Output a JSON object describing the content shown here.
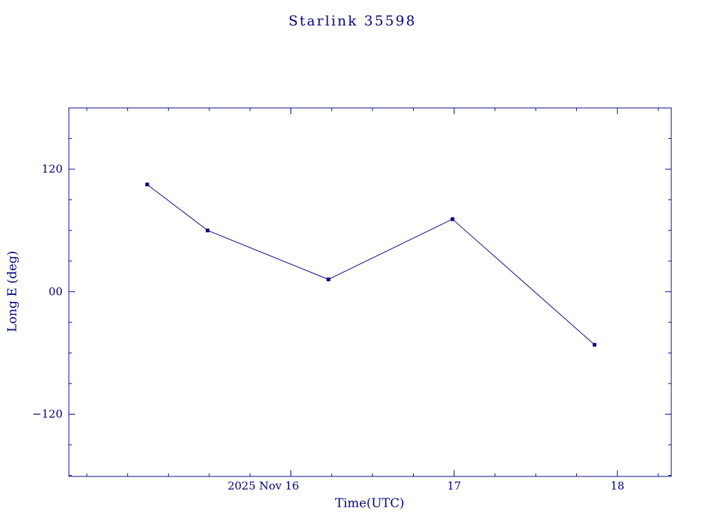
{
  "colors": {
    "accent": "#000080",
    "background": "#ffffff"
  },
  "chart_data": {
    "type": "line",
    "title": "Starlink 35598",
    "xlabel": "Time(UTC)",
    "ylabel": "Long E (deg)",
    "xlim": [
      14.64,
      18.33
    ],
    "ylim": [
      -181,
      180
    ],
    "x_ticks": [
      {
        "value": 16,
        "label": "2025 Nov 16"
      },
      {
        "value": 17,
        "label": "17"
      },
      {
        "value": 18,
        "label": "18"
      }
    ],
    "y_ticks": [
      {
        "value": 120,
        "label": "120"
      },
      {
        "value": 0,
        "label": "00"
      },
      {
        "value": -120,
        "label": "−120"
      }
    ],
    "x_minor_step": 0.25,
    "y_minor_step": 30,
    "grid": false,
    "legend": "none",
    "series": [
      {
        "name": "Long E",
        "marker": "square",
        "x": [
          15.12,
          15.49,
          16.23,
          16.99,
          17.86
        ],
        "y": [
          105,
          60,
          12,
          71,
          -52
        ]
      }
    ]
  }
}
